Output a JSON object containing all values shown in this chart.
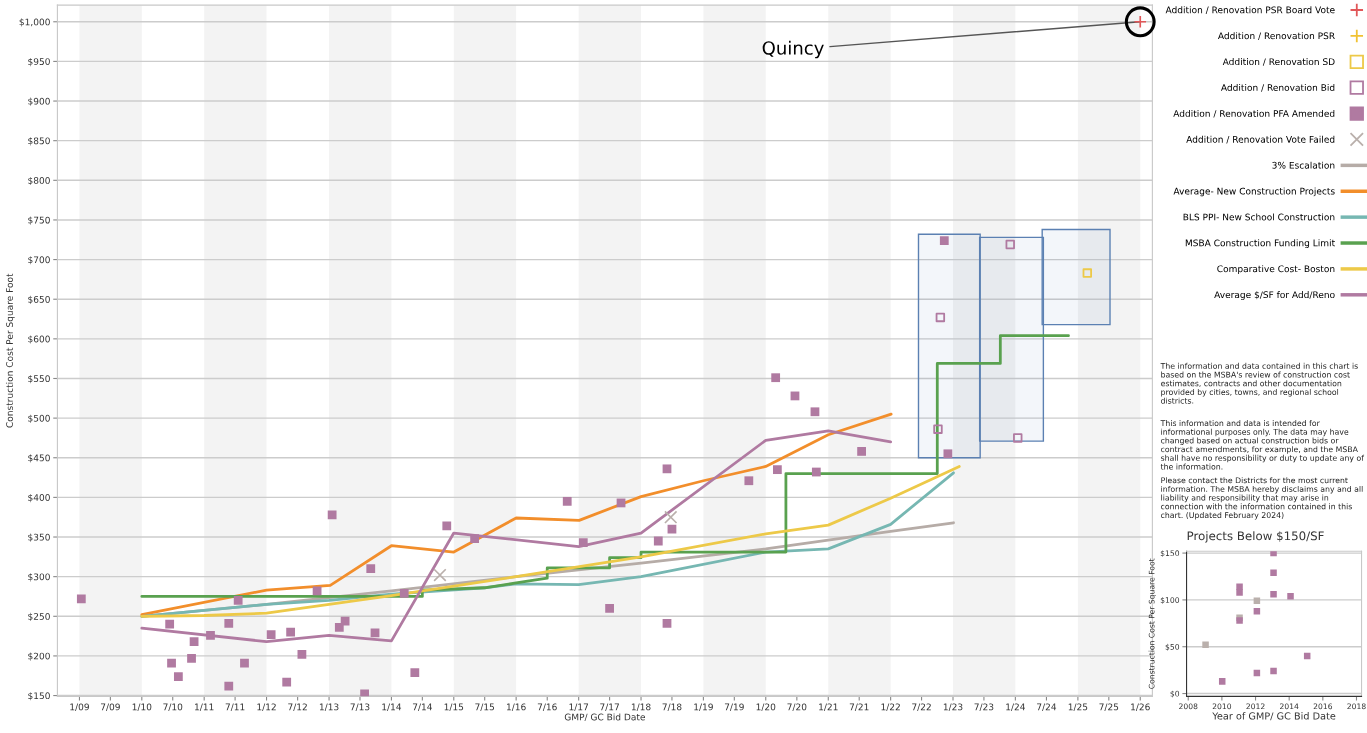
{
  "chart_data": [
    {
      "type": "scatter",
      "xlabel": "GMP/ GC Bid Date",
      "ylabel": "Construction Cost Per Square Foot",
      "xlim": [
        "2008-08-25",
        "2026-03-13"
      ],
      "ylim": [
        149,
        1021
      ],
      "xticks": [
        {
          "value": "2009-01",
          "label": "1/09"
        },
        {
          "value": "2009-07",
          "label": "7/09"
        },
        {
          "value": "2010-01",
          "label": "1/10"
        },
        {
          "value": "2010-07",
          "label": "7/10"
        },
        {
          "value": "2011-01",
          "label": "1/11"
        },
        {
          "value": "2011-07",
          "label": "7/11"
        },
        {
          "value": "2012-01",
          "label": "1/12"
        },
        {
          "value": "2012-07",
          "label": "7/12"
        },
        {
          "value": "2013-01",
          "label": "1/13"
        },
        {
          "value": "2013-07",
          "label": "7/13"
        },
        {
          "value": "2014-01",
          "label": "1/14"
        },
        {
          "value": "2014-07",
          "label": "7/14"
        },
        {
          "value": "2015-01",
          "label": "1/15"
        },
        {
          "value": "2015-07",
          "label": "7/15"
        },
        {
          "value": "2016-01",
          "label": "1/16"
        },
        {
          "value": "2016-07",
          "label": "7/16"
        },
        {
          "value": "2017-01",
          "label": "1/17"
        },
        {
          "value": "2017-07",
          "label": "7/17"
        },
        {
          "value": "2018-01",
          "label": "1/18"
        },
        {
          "value": "2018-07",
          "label": "7/18"
        },
        {
          "value": "2019-01",
          "label": "1/19"
        },
        {
          "value": "2019-07",
          "label": "7/19"
        },
        {
          "value": "2020-01",
          "label": "1/20"
        },
        {
          "value": "2020-07",
          "label": "7/20"
        },
        {
          "value": "2021-01",
          "label": "1/21"
        },
        {
          "value": "2021-07",
          "label": "7/21"
        },
        {
          "value": "2022-01",
          "label": "1/22"
        },
        {
          "value": "2022-07",
          "label": "7/22"
        },
        {
          "value": "2023-01",
          "label": "1/23"
        },
        {
          "value": "2023-07",
          "label": "7/23"
        },
        {
          "value": "2024-01",
          "label": "1/24"
        },
        {
          "value": "2024-07",
          "label": "7/24"
        },
        {
          "value": "2025-01",
          "label": "1/25"
        },
        {
          "value": "2025-07",
          "label": "7/25"
        },
        {
          "value": "2026-01",
          "label": "1/26"
        }
      ],
      "yticks": [
        {
          "value": 150,
          "label": "$150"
        },
        {
          "value": 200,
          "label": "$200"
        },
        {
          "value": 250,
          "label": "$250"
        },
        {
          "value": 300,
          "label": "$300"
        },
        {
          "value": 350,
          "label": "$350"
        },
        {
          "value": 400,
          "label": "$400"
        },
        {
          "value": 450,
          "label": "$450"
        },
        {
          "value": 500,
          "label": "$500"
        },
        {
          "value": 550,
          "label": "$550"
        },
        {
          "value": 600,
          "label": "$600"
        },
        {
          "value": 650,
          "label": "$650"
        },
        {
          "value": 700,
          "label": "$700"
        },
        {
          "value": 750,
          "label": "$750"
        },
        {
          "value": 800,
          "label": "$800"
        },
        {
          "value": 850,
          "label": "$850"
        },
        {
          "value": 900,
          "label": "$900"
        },
        {
          "value": 950,
          "label": "$950"
        },
        {
          "value": 1000,
          "label": "$1,000"
        }
      ],
      "grid": "y",
      "legend": "right",
      "bands": [
        {
          "axis": "x",
          "from": "2009-01-01",
          "to": "2010-01-01",
          "color": "#f3f3f3"
        },
        {
          "axis": "x",
          "from": "2011-01-01",
          "to": "2012-01-01",
          "color": "#f3f3f3"
        },
        {
          "axis": "x",
          "from": "2013-01-01",
          "to": "2014-01-01",
          "color": "#f3f3f3"
        },
        {
          "axis": "x",
          "from": "2015-01-01",
          "to": "2016-01-01",
          "color": "#f3f3f3"
        },
        {
          "axis": "x",
          "from": "2017-01-01",
          "to": "2018-01-01",
          "color": "#f3f3f3"
        },
        {
          "axis": "x",
          "from": "2019-01-01",
          "to": "2020-01-01",
          "color": "#f3f3f3"
        },
        {
          "axis": "x",
          "from": "2021-01-01",
          "to": "2022-01-01",
          "color": "#f3f3f3"
        },
        {
          "axis": "x",
          "from": "2023-01-01",
          "to": "2024-01-01",
          "color": "#f3f3f3"
        },
        {
          "axis": "x",
          "from": "2025-01-01",
          "to": "2026-01-01",
          "color": "#f3f3f3"
        }
      ],
      "annotations": [
        {
          "text": "Quincy",
          "x": "2026-01-01",
          "y": 1000
        },
        "The information and data contained in this chart is based on the MSBA's review of construction cost estimates, contracts and other documentation provided by cities, towns, and regional school districts.",
        "This information and data is intended for informational purposes only. The data may have changed based on actual construction bids or contract amendments, for example, and the MSBA shall have no responsibility or duty to update any of the information.",
        "Please contact the Districts for the most current information. The MSBA hereby disclaims any and all liability and responsibility that may arise in connection with the information contained in this chart. (Updated February 2024)"
      ],
      "series": [
        {
          "type": "area",
          "color": "#5b80b2",
          "x": [
            "2022-06-13",
            "2023-06-09",
            "2023-06-09",
            "2022-06-13",
            "2022-06-13"
          ],
          "values": [
            732,
            732,
            450,
            450,
            732
          ]
        },
        {
          "type": "area",
          "color": "#5b80b2",
          "x": [
            "2023-06-06",
            "2024-06-13",
            "2024-06-13",
            "2023-06-06",
            "2023-06-06"
          ],
          "values": [
            728,
            728,
            471,
            471,
            728
          ]
        },
        {
          "type": "area",
          "color": "#5b80b2",
          "x": [
            "2024-06-06",
            "2025-07-08",
            "2025-07-08",
            "2024-06-06",
            "2024-06-06"
          ],
          "values": [
            738,
            738,
            618,
            618,
            738
          ]
        },
        {
          "name": "Addition / Renovation PSR Board Vote",
          "type": "scatter",
          "marker": "plus",
          "color": "#e15759",
          "x": [
            "2026-01-01"
          ],
          "values": [
            1000
          ]
        },
        {
          "name": "Addition / Renovation PSR",
          "type": "scatter",
          "marker": "plus",
          "color": "#f1c232"
        },
        {
          "name": "Addition / Renovation SD",
          "type": "scatter",
          "marker": "square-open",
          "color": "#edc948",
          "x": [
            "2025-02-25"
          ],
          "values": [
            683
          ]
        },
        {
          "name": "Addition / Renovation Bid",
          "type": "scatter",
          "marker": "square-open",
          "color": "#b07aa1",
          "x": [
            "2022-10-19",
            "2022-10-05",
            "2023-12-02",
            "2024-01-15"
          ],
          "values": [
            627,
            486,
            719,
            475
          ]
        },
        {
          "name": "Addition / Renovation PFA Amended",
          "type": "scatter",
          "marker": "square",
          "color": "#b07aa1",
          "x": [
            "2009-01-12",
            "2010-06-13",
            "2010-06-24",
            "2010-08-03",
            "2010-10-19",
            "2010-11-03",
            "2011-02-07",
            "2011-05-25",
            "2011-05-25",
            "2011-07-19",
            "2011-08-25",
            "2012-01-28",
            "2012-04-28",
            "2012-05-21",
            "2012-07-26",
            "2012-10-23",
            "2013-01-19",
            "2013-03-02",
            "2013-04-05",
            "2013-07-28",
            "2013-09-02",
            "2013-09-27",
            "2014-03-17",
            "2014-05-18",
            "2014-11-21",
            "2015-05-03",
            "2016-10-26",
            "2017-01-28",
            "2017-09-06",
            "2017-07-01",
            "2018-04-12",
            "2018-06-02",
            "2018-07-01",
            "2018-06-02",
            "2019-09-24",
            "2020-02-28",
            "2020-03-09",
            "2020-06-20",
            "2020-10-15",
            "2020-10-23",
            "2021-07-15",
            "2022-11-11",
            "2022-12-02"
          ],
          "values": [
            272,
            240,
            191,
            174,
            197,
            218,
            226,
            241,
            162,
            270,
            191,
            227,
            167,
            230,
            202,
            282,
            378,
            236,
            244,
            152,
            310,
            229,
            279,
            179,
            364,
            348,
            395,
            343,
            393,
            260,
            345,
            436,
            360,
            241,
            421,
            551,
            435,
            528,
            508,
            432,
            458,
            724,
            455
          ]
        },
        {
          "name": "Addition / Renovation Vote Failed",
          "type": "scatter",
          "marker": "cross",
          "color": "#bab0ac",
          "x": [
            "2014-10-12",
            "2018-06-24"
          ],
          "values": [
            302,
            375
          ]
        },
        {
          "name": "3% Escalation",
          "type": "line",
          "marker": "none",
          "color": "#b6aca7",
          "x": [
            "2010-01-01",
            "2012-01-01",
            "2014-01-01",
            "2016-01-01",
            "2018-01-01",
            "2020-01-01",
            "2022-01-01",
            "2023-01-04"
          ],
          "values": [
            250,
            265,
            282,
            300,
            317,
            335,
            357,
            368
          ]
        },
        {
          "name": "Average- New Construction Projects",
          "type": "line",
          "marker": "none",
          "color": "#f28e2b",
          "x": [
            "2010-01-01",
            "2012-01-01",
            "2013-01-08",
            "2014-01-01",
            "2015-01-01",
            "2016-01-01",
            "2017-01-04",
            "2018-01-01",
            "2019-01-01",
            "2020-01-01",
            "2021-01-01",
            "2022-01-04"
          ],
          "values": [
            252,
            283,
            289,
            339,
            331,
            374,
            371,
            401,
            421,
            439,
            479,
            505
          ]
        },
        {
          "name": "BLS PPI- New School Construction",
          "type": "line",
          "marker": "none",
          "color": "#76b7b2",
          "x": [
            "2010-01-01",
            "2012-01-01",
            "2013-01-01",
            "2014-01-01",
            "2015-07-01",
            "2016-01-01",
            "2017-01-01",
            "2018-01-01",
            "2020-01-01",
            "2021-01-01",
            "2022-01-01",
            "2023-01-04"
          ],
          "values": [
            250,
            265,
            270,
            278,
            286,
            291,
            290,
            300,
            331,
            335,
            366,
            431
          ]
        },
        {
          "name": "MSBA Construction Funding Limit",
          "type": "line",
          "marker": "none",
          "color": "#59a14f",
          "x": [
            "2010-01-01",
            "2014-07-01",
            "2014-07-01",
            "2015-07-01",
            "2016-01-01",
            "2016-07-01",
            "2016-07-01",
            "2017-07-01",
            "2017-07-01",
            "2018-01-01",
            "2018-01-01",
            "2020-04-28",
            "2020-04-28",
            "2022-10-01",
            "2022-10-01",
            "2023-10-05",
            "2023-10-05",
            "2024-11-07"
          ],
          "values": [
            275,
            275,
            283,
            286,
            292,
            298,
            311,
            311,
            324,
            324,
            331,
            331,
            430,
            430,
            569,
            569,
            604,
            604
          ]
        },
        {
          "name": "Comparative Cost- Boston",
          "type": "line",
          "marker": "none",
          "color": "#edc948",
          "x": [
            "2010-01-01",
            "2011-01-01",
            "2012-01-01",
            "2013-01-01",
            "2014-01-01",
            "2016-01-01",
            "2018-01-01",
            "2020-01-01",
            "2021-01-01",
            "2022-01-01",
            "2023-02-07"
          ],
          "values": [
            250,
            251,
            254,
            265,
            276,
            300,
            325,
            354,
            365,
            399,
            439
          ]
        },
        {
          "name": "Average $/SF for Add/Reno",
          "type": "line",
          "marker": "none",
          "color": "#b07aa1",
          "x": [
            "2010-01-01",
            "2012-01-01",
            "2013-01-01",
            "2014-01-01",
            "2015-01-01",
            "2017-01-01",
            "2018-01-01",
            "2020-01-01",
            "2021-01-01",
            "2022-01-01"
          ],
          "values": [
            235,
            218,
            226,
            219,
            355,
            338,
            355,
            472,
            484,
            470
          ]
        }
      ]
    },
    {
      "type": "scatter",
      "title": "Projects Below $150/SF",
      "xlabel": "Year of GMP/ GC Bid Date",
      "ylabel": "Construction Cost Per Square Foot",
      "xlim": [
        2007.9,
        2018.3
      ],
      "ylim": [
        -3,
        152
      ],
      "xticks": [
        2008,
        2010,
        2012,
        2014,
        2016,
        2018
      ],
      "yticks": [
        {
          "value": 0,
          "label": "$0"
        },
        {
          "value": 50,
          "label": "$50"
        },
        {
          "value": 100,
          "label": "$100"
        },
        {
          "value": 150,
          "label": "$150"
        }
      ],
      "grid": "y",
      "marker": "square",
      "series": [
        {
          "color": "#bab0ac",
          "x": [
            2009.03,
            2011.05,
            2012.08
          ],
          "values": [
            52,
            81,
            99
          ]
        },
        {
          "color": "#b07aa1",
          "x": [
            2010.02,
            2011.05,
            2011.05,
            2011.05,
            2012.08,
            2012.08,
            2013.07,
            2013.07,
            2013.07,
            2013.07,
            2014.08,
            2015.07
          ],
          "values": [
            13,
            114,
            108,
            78,
            88,
            22,
            150,
            129,
            106,
            24,
            104,
            40
          ]
        }
      ]
    }
  ]
}
